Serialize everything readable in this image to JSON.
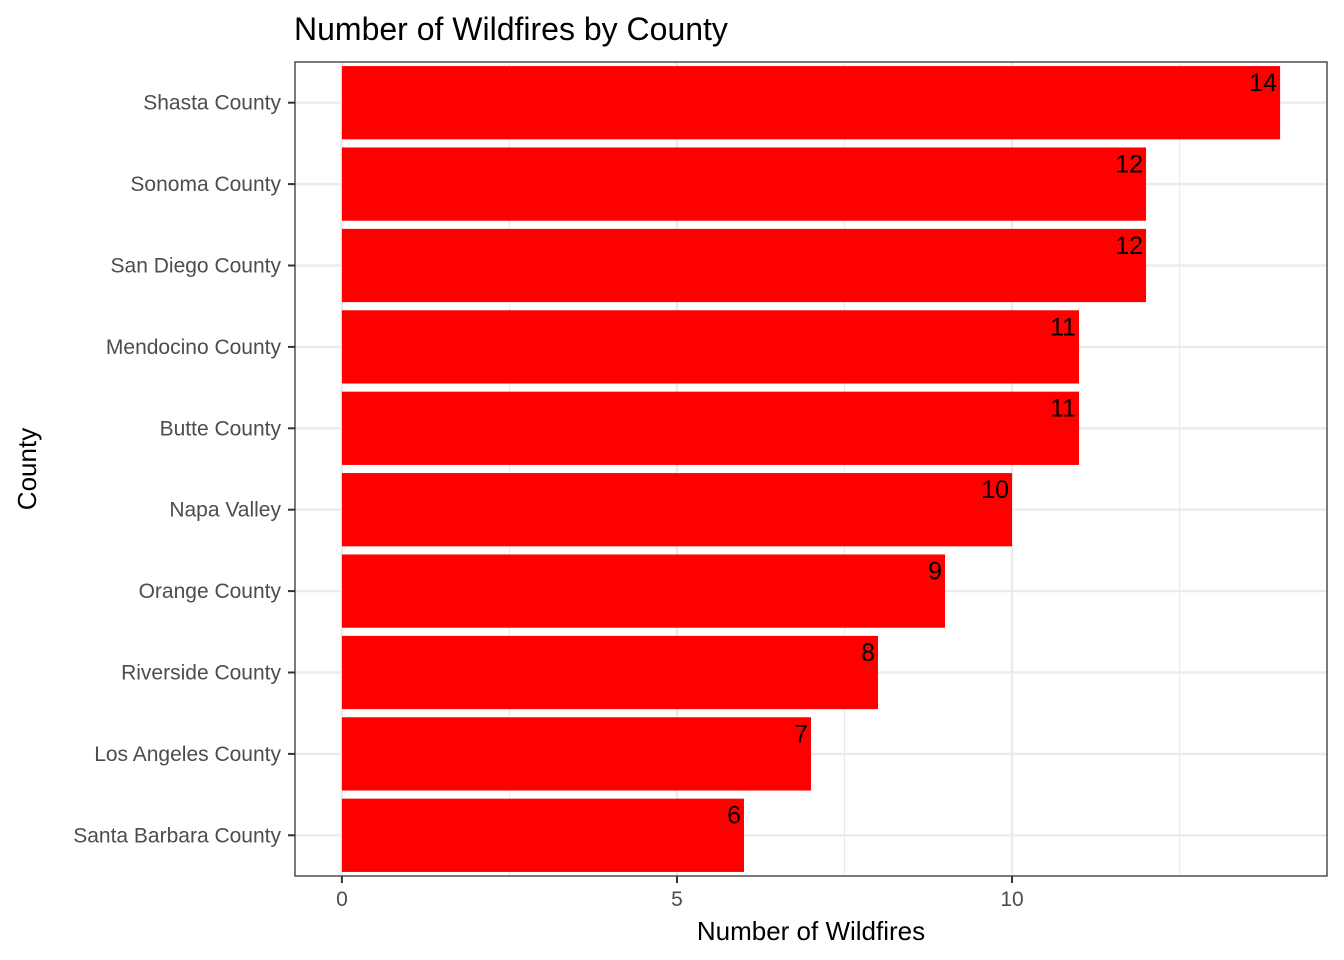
{
  "chart_data": {
    "type": "bar",
    "orientation": "horizontal",
    "title": "Number of Wildfires by County",
    "xlabel": "Number of Wildfires",
    "ylabel": "County",
    "categories": [
      "Shasta County",
      "Sonoma County",
      "San Diego County",
      "Mendocino County",
      "Butte County",
      "Napa Valley",
      "Orange County",
      "Riverside County",
      "Los Angeles County",
      "Santa Barbara County"
    ],
    "values": [
      14,
      12,
      12,
      11,
      11,
      10,
      9,
      8,
      7,
      6
    ],
    "xlim": [
      -0.7,
      14.7
    ],
    "xticks": [
      0,
      5,
      10
    ],
    "xtick_labels": [
      "0",
      "5",
      "10"
    ],
    "minor_gridlines": [
      2.5,
      7.5,
      12.5
    ],
    "grid": true,
    "bar_color": "#ff0000",
    "gridline_color": "#ebebeb",
    "border_color": "#333333"
  }
}
